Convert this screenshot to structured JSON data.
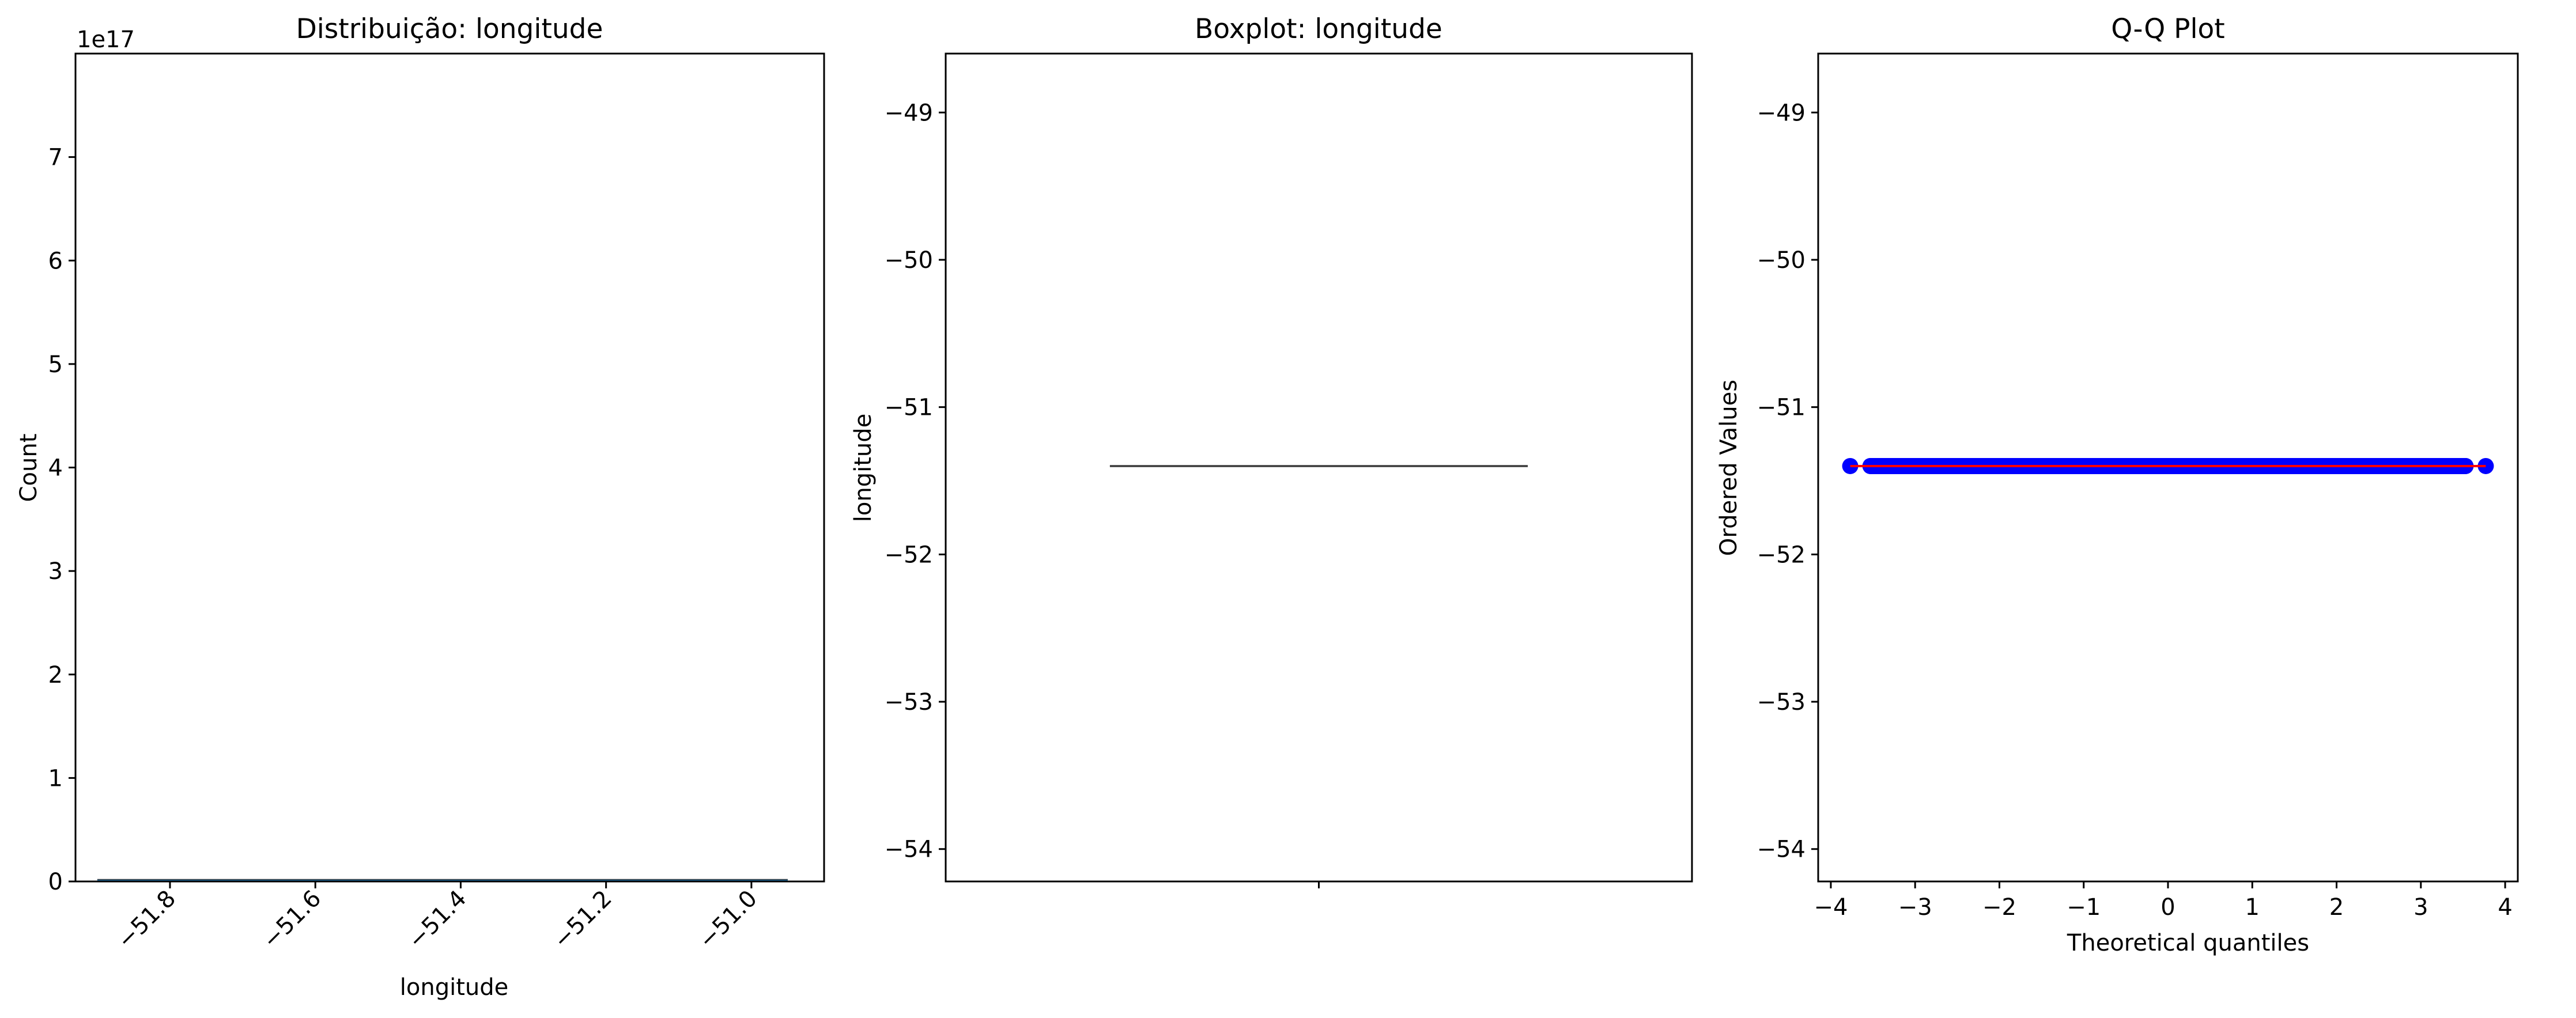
{
  "chart_data": [
    {
      "type": "bar",
      "title": "Distribuição: longitude",
      "xlabel": "longitude",
      "ylabel": "Count",
      "offset_text": "1e17",
      "xlim": [
        -51.93,
        -50.9
      ],
      "ylim": [
        0,
        8.0
      ],
      "ytick_scale": 1e+17,
      "xticks": [
        -51.8,
        -51.6,
        -51.4,
        -51.2,
        -51.0
      ],
      "xtick_labels": [
        "−51.8",
        "−51.6",
        "−51.4",
        "−51.2",
        "−51.0"
      ],
      "yticks": [
        0,
        1,
        2,
        3,
        4,
        5,
        6,
        7
      ],
      "ytick_labels": [
        "0",
        "1",
        "2",
        "3",
        "4",
        "5",
        "6",
        "7"
      ],
      "bar_range": [
        -51.9,
        -50.95
      ],
      "bar_color": "#1f77b4",
      "grid": false
    },
    {
      "type": "box",
      "title": "Boxplot: longitude",
      "ylabel": "longitude",
      "ylim": [
        -54.22,
        -48.6
      ],
      "yticks": [
        -54,
        -53,
        -52,
        -51,
        -50,
        -49
      ],
      "ytick_labels": [
        "−54",
        "−53",
        "−52",
        "−51",
        "−50",
        "−49"
      ],
      "median": -51.4,
      "q1": -51.4,
      "q3": -51.4,
      "box_width_fraction": 0.8,
      "line_color": "#3a3a3a",
      "grid": false
    },
    {
      "type": "scatter",
      "title": "Q-Q Plot",
      "xlabel": "Theoretical quantiles",
      "ylabel": "Ordered Values",
      "xlim": [
        -4.15,
        4.15
      ],
      "ylim": [
        -54.22,
        -48.6
      ],
      "xticks": [
        -4,
        -3,
        -2,
        -1,
        0,
        1,
        2,
        3,
        4
      ],
      "xtick_labels": [
        "−4",
        "−3",
        "−2",
        "−1",
        "0",
        "1",
        "2",
        "3",
        "4"
      ],
      "yticks": [
        -54,
        -53,
        -52,
        -51,
        -50,
        -49
      ],
      "ytick_labels": [
        "−54",
        "−53",
        "−52",
        "−51",
        "−50",
        "−49"
      ],
      "points_x": [
        -3.77,
        -3.53,
        -3.45,
        -3.38,
        -3.3,
        -3.2,
        -3.1,
        -3.0,
        -2.8,
        -2.6,
        -2.4,
        -2.2,
        -2.0,
        -1.8,
        -1.6,
        -1.4,
        -1.2,
        -1.0,
        -0.8,
        -0.6,
        -0.4,
        -0.2,
        0.0,
        0.2,
        0.4,
        0.6,
        0.8,
        1.0,
        1.2,
        1.4,
        1.6,
        1.8,
        2.0,
        2.2,
        2.4,
        2.6,
        2.8,
        3.0,
        3.1,
        3.2,
        3.3,
        3.38,
        3.45,
        3.53,
        3.77
      ],
      "value": -51.4,
      "marker_color": "#0000ff",
      "fit_line": {
        "x": [
          -3.77,
          3.77
        ],
        "y": [
          -51.4,
          -51.4
        ],
        "color": "#ff0000"
      },
      "grid": false
    }
  ]
}
